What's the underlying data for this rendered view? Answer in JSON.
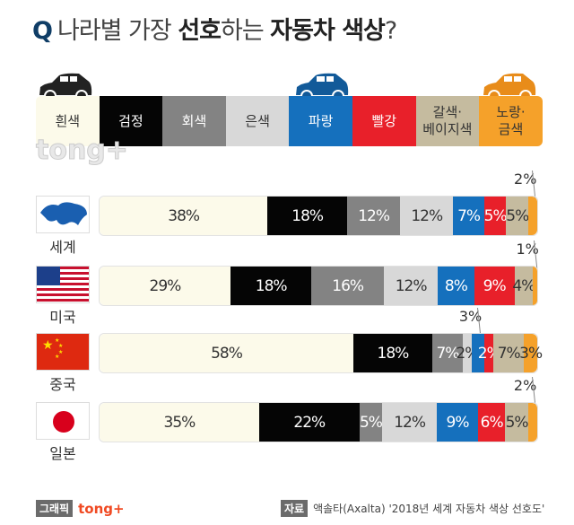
{
  "title": {
    "q": "Q",
    "part1": "나라별 가장 ",
    "bold1": "선호",
    "part2": "하는 ",
    "bold2": "자동차 색상",
    "part3": "?"
  },
  "watermark": "tong+",
  "chart_data": {
    "type": "bar",
    "stacked": true,
    "orientation": "horizontal",
    "unit": "%",
    "categories": [
      "세계",
      "미국",
      "중국",
      "일본"
    ],
    "series": [
      {
        "name": "흰색",
        "color": "#fcfaea",
        "text": "#333",
        "values": [
          38,
          29,
          58,
          35
        ]
      },
      {
        "name": "검정",
        "color": "#050505",
        "text": "#fff",
        "values": [
          18,
          18,
          18,
          22
        ]
      },
      {
        "name": "회색",
        "color": "#838383",
        "text": "#fff",
        "values": [
          12,
          16,
          7,
          5
        ]
      },
      {
        "name": "은색",
        "color": "#d8d8d8",
        "text": "#333",
        "values": [
          12,
          12,
          2,
          12
        ]
      },
      {
        "name": "파랑",
        "color": "#1570bd",
        "text": "#fff",
        "values": [
          7,
          8,
          3,
          9
        ]
      },
      {
        "name": "빨강",
        "color": "#e8202a",
        "text": "#fff",
        "values": [
          5,
          9,
          2,
          6
        ]
      },
      {
        "name": "갈색·\n베이지색",
        "color": "#c5bb9f",
        "text": "#333",
        "values": [
          5,
          4,
          7,
          5
        ]
      },
      {
        "name": "노랑·\n금색",
        "color": "#f5a12a",
        "text": "#333",
        "values": [
          2,
          1,
          3,
          2
        ]
      }
    ],
    "callouts": [
      {
        "row": 0,
        "series": 7
      },
      {
        "row": 1,
        "series": 7
      },
      {
        "row": 2,
        "series": 4
      },
      {
        "row": 3,
        "series": 7
      }
    ],
    "legend": "top"
  },
  "footer": {
    "graphic_tag": "그래픽",
    "brand": "tong+",
    "source_tag": "자료",
    "source": "액솔타(Axalta) '2018년 세계 자동차 색상 선호도'"
  }
}
